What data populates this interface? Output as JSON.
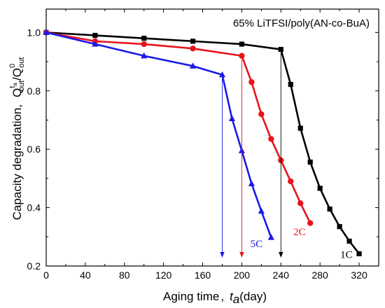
{
  "chart_data": {
    "type": "line",
    "title": "65% LiTFSI/poly(AN-co-BuA)",
    "xlabel_main": "Aging time",
    "xlabel_sep": ",",
    "xlabel_var": "t",
    "xlabel_sub": "a",
    "xlabel_unit": "(day)",
    "ylabel_main": "Capacity degradation",
    "ylabel_sep": ",",
    "ylabel_q": "Q",
    "ylabel_sup1": "t",
    "ylabel_sup1_sub": "a",
    "ylabel_sub": "out",
    "ylabel_slash": "/Q",
    "ylabel_sup2": "0",
    "xlim": [
      0,
      340
    ],
    "ylim": [
      0.2,
      1.08
    ],
    "xticks": [
      "0",
      "40",
      "80",
      "120",
      "160",
      "200",
      "240",
      "280",
      "320"
    ],
    "yticks": [
      "0.2",
      "0.4",
      "0.6",
      "0.8",
      "1.0"
    ],
    "series": [
      {
        "name": "1C",
        "color": "#000000",
        "marker": "square",
        "x": [
          0,
          50,
          100,
          150,
          200,
          240,
          250,
          260,
          270,
          280,
          290,
          300,
          310,
          320
        ],
        "y": [
          1.0,
          0.99,
          0.98,
          0.97,
          0.96,
          0.942,
          0.822,
          0.672,
          0.556,
          0.466,
          0.395,
          0.335,
          0.285,
          0.242
        ]
      },
      {
        "name": "2C",
        "color": "#e8141c",
        "marker": "circle",
        "x": [
          0,
          50,
          100,
          150,
          200,
          210,
          220,
          230,
          240,
          250,
          260,
          270
        ],
        "y": [
          1.0,
          0.97,
          0.96,
          0.945,
          0.92,
          0.83,
          0.72,
          0.635,
          0.562,
          0.49,
          0.415,
          0.347
        ]
      },
      {
        "name": "5C",
        "color": "#1a1ae6",
        "marker": "triangle",
        "x": [
          0,
          50,
          100,
          150,
          180,
          190,
          200,
          210,
          220,
          230
        ],
        "y": [
          1.0,
          0.96,
          0.92,
          0.885,
          0.855,
          0.705,
          0.595,
          0.482,
          0.388,
          0.298
        ]
      }
    ],
    "arrows": [
      {
        "series": "5C",
        "x": 180,
        "from_y": 0.855,
        "to_y": 0.2,
        "color": "#1a1ae6"
      },
      {
        "series": "2C",
        "x": 200,
        "from_y": 0.92,
        "to_y": 0.2,
        "color": "#e8141c"
      },
      {
        "series": "1C",
        "x": 240,
        "from_y": 0.942,
        "to_y": 0.2,
        "color": "#000000"
      }
    ],
    "labels": [
      {
        "text": "5C",
        "x": 215,
        "y": 0.265,
        "color": "#1a1ae6"
      },
      {
        "text": "2C",
        "x": 259,
        "y": 0.305,
        "color": "#e8141c"
      },
      {
        "text": "1C",
        "x": 307,
        "y": 0.228,
        "color": "#000000"
      }
    ]
  }
}
